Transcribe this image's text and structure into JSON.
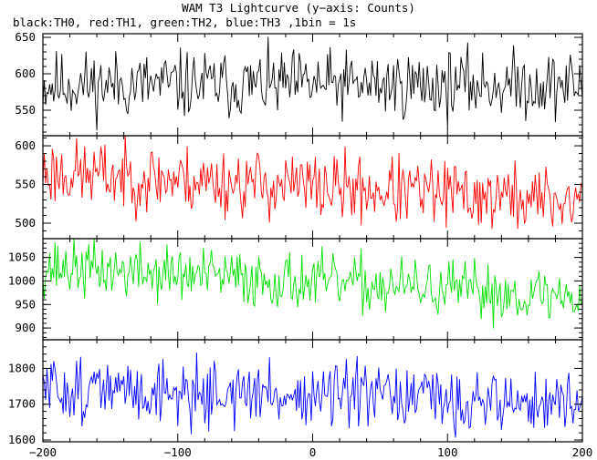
{
  "title": "WAM T3 Lightcurve (y−axis: Counts)",
  "subtitle": "black:TH0, red:TH1, green:TH2, blue:TH3 ,1bin = 1s",
  "chart_data": {
    "type": "line",
    "xlim": [
      -200,
      200
    ],
    "xticks": [
      -200,
      -100,
      0,
      100,
      200
    ],
    "series": [
      {
        "name": "TH0",
        "color": "#000000",
        "ylim": [
          515,
          655
        ],
        "yticks": [
          550,
          600,
          650
        ],
        "mean": 585,
        "trend": 0,
        "noise": 23,
        "seed": 11
      },
      {
        "name": "TH1",
        "color": "#ff0000",
        "ylim": [
          480,
          613
        ],
        "yticks": [
          500,
          550,
          600
        ],
        "mean": 566,
        "trend": -38,
        "noise": 22,
        "seed": 23
      },
      {
        "name": "TH2",
        "color": "#00e000",
        "ylim": [
          875,
          1090
        ],
        "yticks": [
          900,
          950,
          1000,
          1050
        ],
        "mean": 1030,
        "trend": -65,
        "noise": 30,
        "seed": 37
      },
      {
        "name": "TH3",
        "color": "#0000ff",
        "ylim": [
          1595,
          1880
        ],
        "yticks": [
          1600,
          1700,
          1800
        ],
        "mean": 1745,
        "trend": -45,
        "noise": 45,
        "seed": 51
      }
    ]
  }
}
